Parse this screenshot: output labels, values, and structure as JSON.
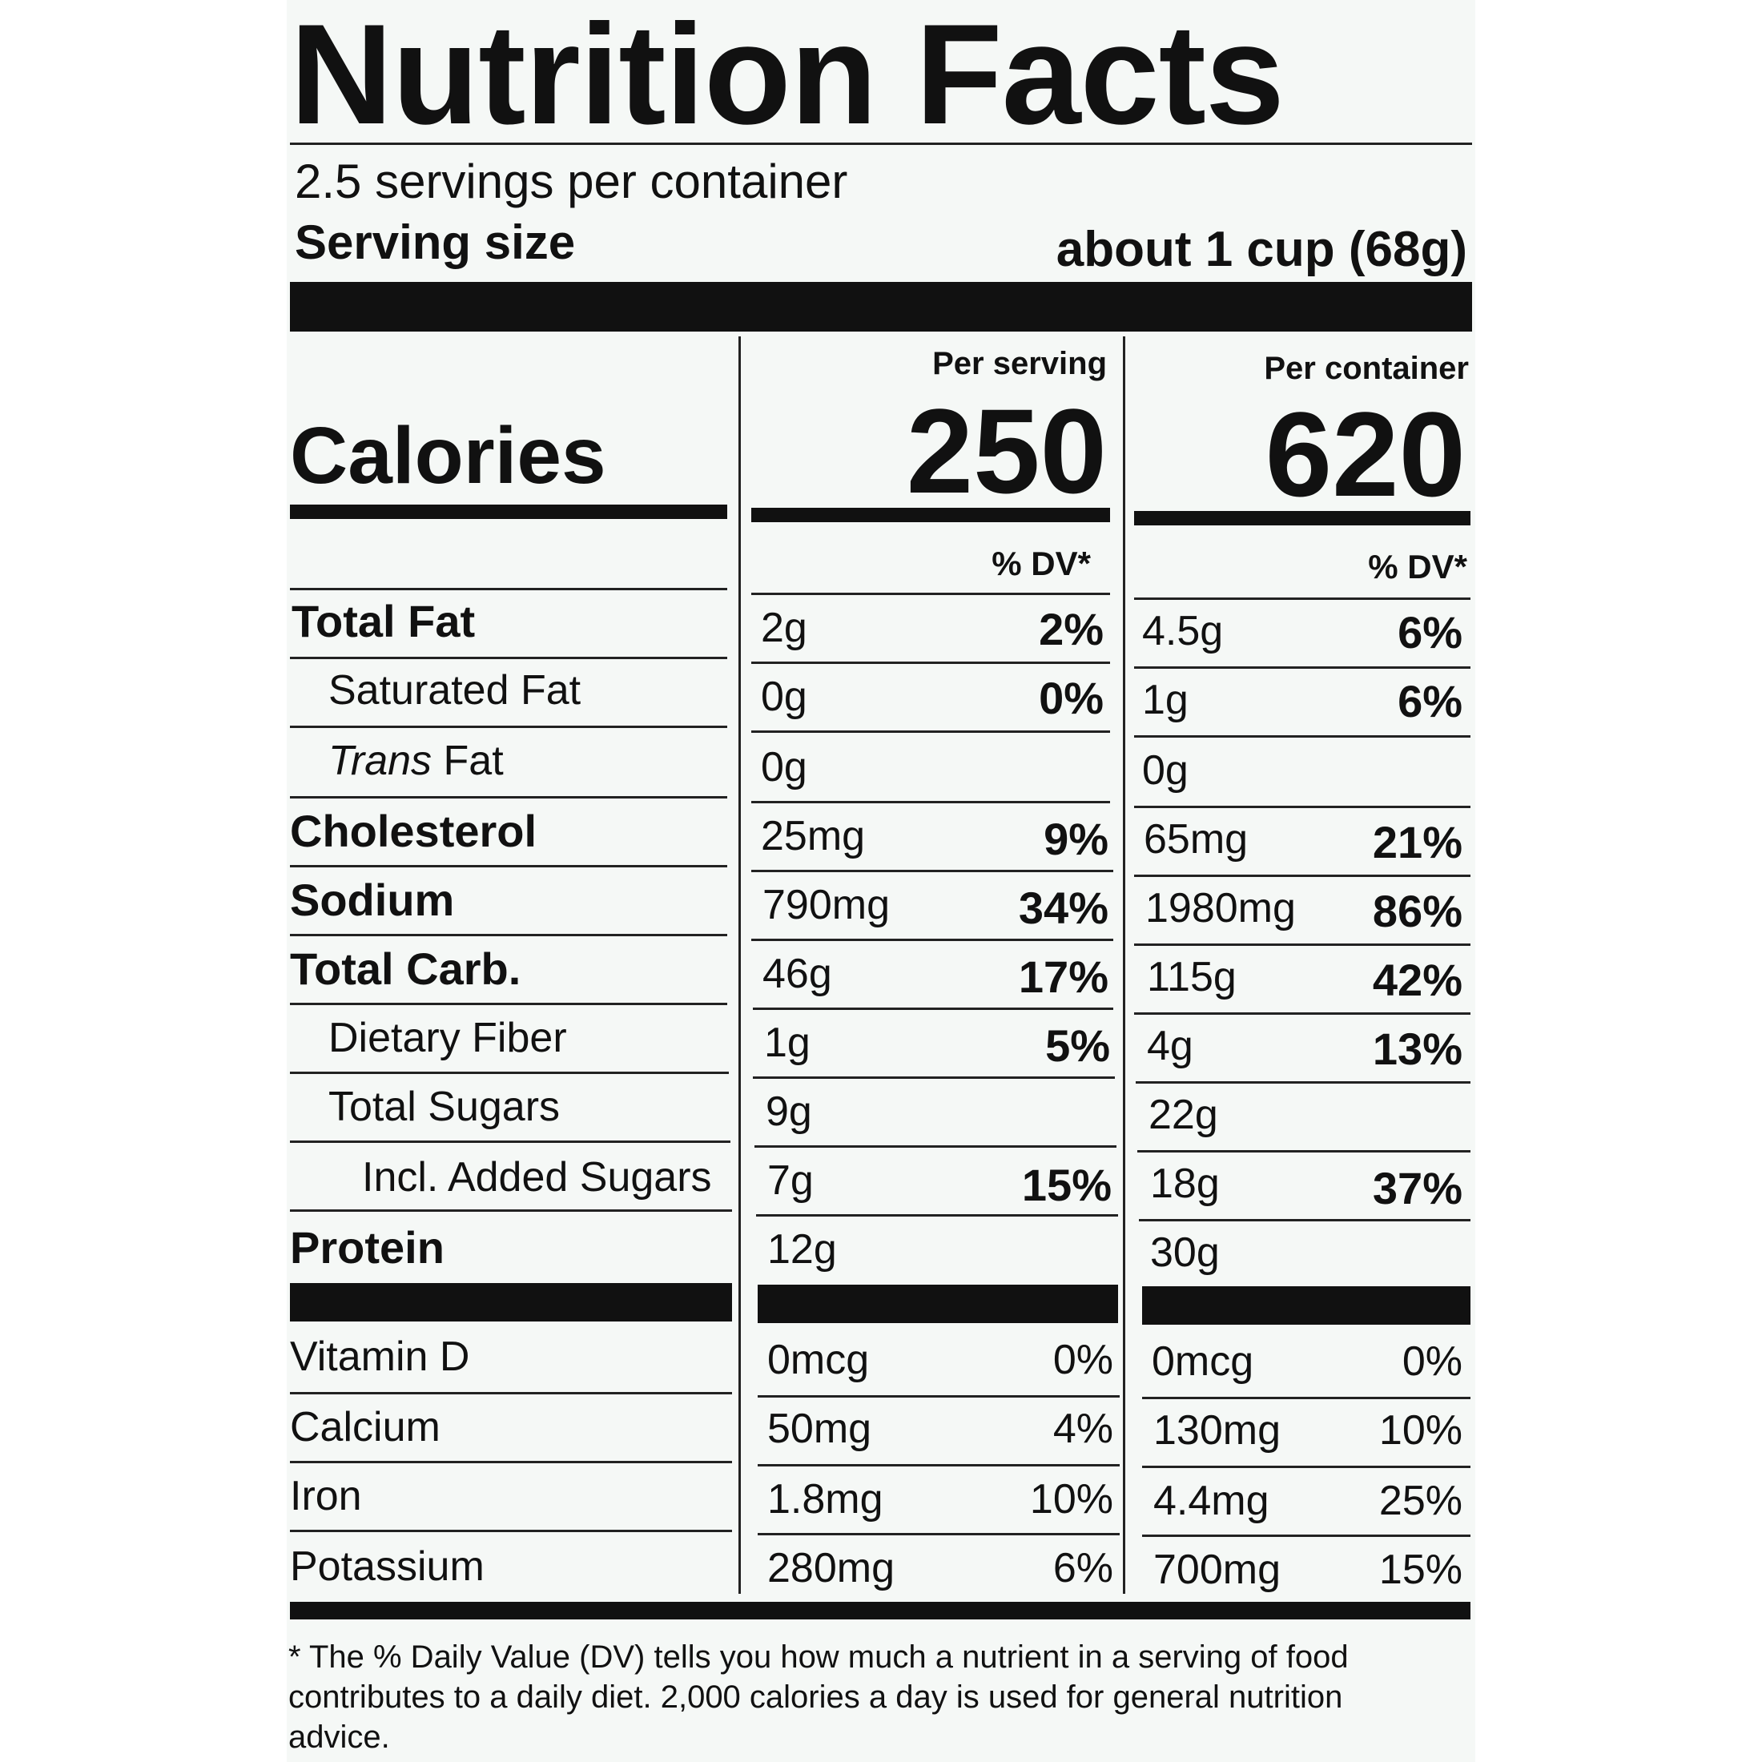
{
  "title": "Nutrition Facts",
  "servings_per_container": "2.5 servings per container",
  "serving_size_label": "Serving size",
  "serving_size_value": "about 1 cup (68g)",
  "calories_label": "Calories",
  "per_serving_header": "Per serving",
  "per_container_header": "Per container",
  "calories_per_serving": "250",
  "calories_per_container": "620",
  "dv_header": "% DV*",
  "nutrients": [
    {
      "name": "Total Fat",
      "serving_amount": "2g",
      "serving_dv": "2%",
      "container_amount": "4.5g",
      "container_dv": "6%"
    },
    {
      "name": "Saturated Fat",
      "serving_amount": "0g",
      "serving_dv": "0%",
      "container_amount": "1g",
      "container_dv": "6%"
    },
    {
      "name_italic": "Trans",
      "name": "Fat",
      "serving_amount": "0g",
      "serving_dv": "",
      "container_amount": "0g",
      "container_dv": ""
    },
    {
      "name": "Cholesterol",
      "serving_amount": "25mg",
      "serving_dv": "9%",
      "container_amount": "65mg",
      "container_dv": "21%"
    },
    {
      "name": "Sodium",
      "serving_amount": "790mg",
      "serving_dv": "34%",
      "container_amount": "1980mg",
      "container_dv": "86%"
    },
    {
      "name": "Total Carb.",
      "serving_amount": "46g",
      "serving_dv": "17%",
      "container_amount": "115g",
      "container_dv": "42%"
    },
    {
      "name": "Dietary Fiber",
      "serving_amount": "1g",
      "serving_dv": "5%",
      "container_amount": "4g",
      "container_dv": "13%"
    },
    {
      "name": "Total Sugars",
      "serving_amount": "9g",
      "serving_dv": "",
      "container_amount": "22g",
      "container_dv": ""
    },
    {
      "name": "Incl. Added Sugars",
      "serving_amount": "7g",
      "serving_dv": "15%",
      "container_amount": "18g",
      "container_dv": "37%"
    },
    {
      "name": "Protein",
      "serving_amount": "12g",
      "serving_dv": "",
      "container_amount": "30g",
      "container_dv": ""
    }
  ],
  "vitamins": [
    {
      "name": "Vitamin D",
      "serving_amount": "0mcg",
      "serving_dv": "0%",
      "container_amount": "0mcg",
      "container_dv": "0%"
    },
    {
      "name": "Calcium",
      "serving_amount": "50mg",
      "serving_dv": "4%",
      "container_amount": "130mg",
      "container_dv": "10%"
    },
    {
      "name": "Iron",
      "serving_amount": "1.8mg",
      "serving_dv": "10%",
      "container_amount": "4.4mg",
      "container_dv": "25%"
    },
    {
      "name": "Potassium",
      "serving_amount": "280mg",
      "serving_dv": "6%",
      "container_amount": "700mg",
      "container_dv": "15%"
    }
  ],
  "footnote": "* The % Daily Value (DV) tells you how much a nutrient in a serving of food contributes to a daily diet. 2,000 calories a day is used for general nutrition advice."
}
